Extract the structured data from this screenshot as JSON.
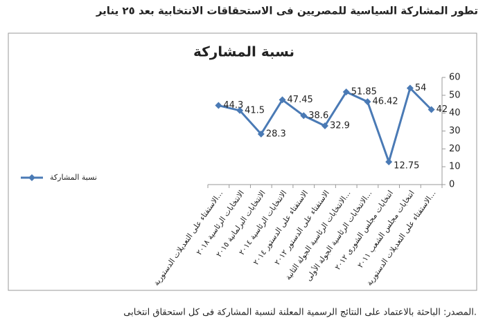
{
  "heading": "تطور المشاركة السياسية للمصريين فى الاستحقاقات الانتخابية بعد ٢٥ يناير",
  "source": "المصدر: الباحثة بالاعتماد على النتائج الرسمية المعلنة لنسبة المشاركة فى كل استحقاق انتخابى.",
  "chart_data": {
    "type": "line",
    "title": "نسبة المشاركة",
    "categories": [
      "الاستفتاء على التعديلات الدستورية...",
      "الانتخابات الرئاسية ٢٠١٨",
      "الانتخابات البرلمانية ٢٠١٥",
      "الانتخابات الرئاسية ٢٠١٤",
      "الاستفتاء على الدستور ٢٠١٤",
      "الاستفتاء على الدستور ٢٠١٢",
      "الانتخابات الرئاسية الجولة الثانية...",
      "الانتخابات الرئاسية الجولة الأولى...",
      "انتخابات مجلس الشورى ٢٠١٢",
      "انتخابات مجلس الشعب ٢٠١١",
      "الاستفتاء على التعديلات الدستورية..."
    ],
    "series": [
      {
        "name": "نسبة المشاركة",
        "color": "#4a7ab5",
        "values": [
          44.3,
          41.5,
          28.3,
          47.45,
          38.6,
          32.9,
          51.85,
          46.42,
          12.75,
          54,
          42
        ]
      }
    ],
    "ylim": [
      0,
      60
    ],
    "yticks": [
      0,
      10,
      20,
      30,
      40,
      50,
      60
    ],
    "grid": false,
    "legend": "left",
    "y_axis_side": "right"
  }
}
